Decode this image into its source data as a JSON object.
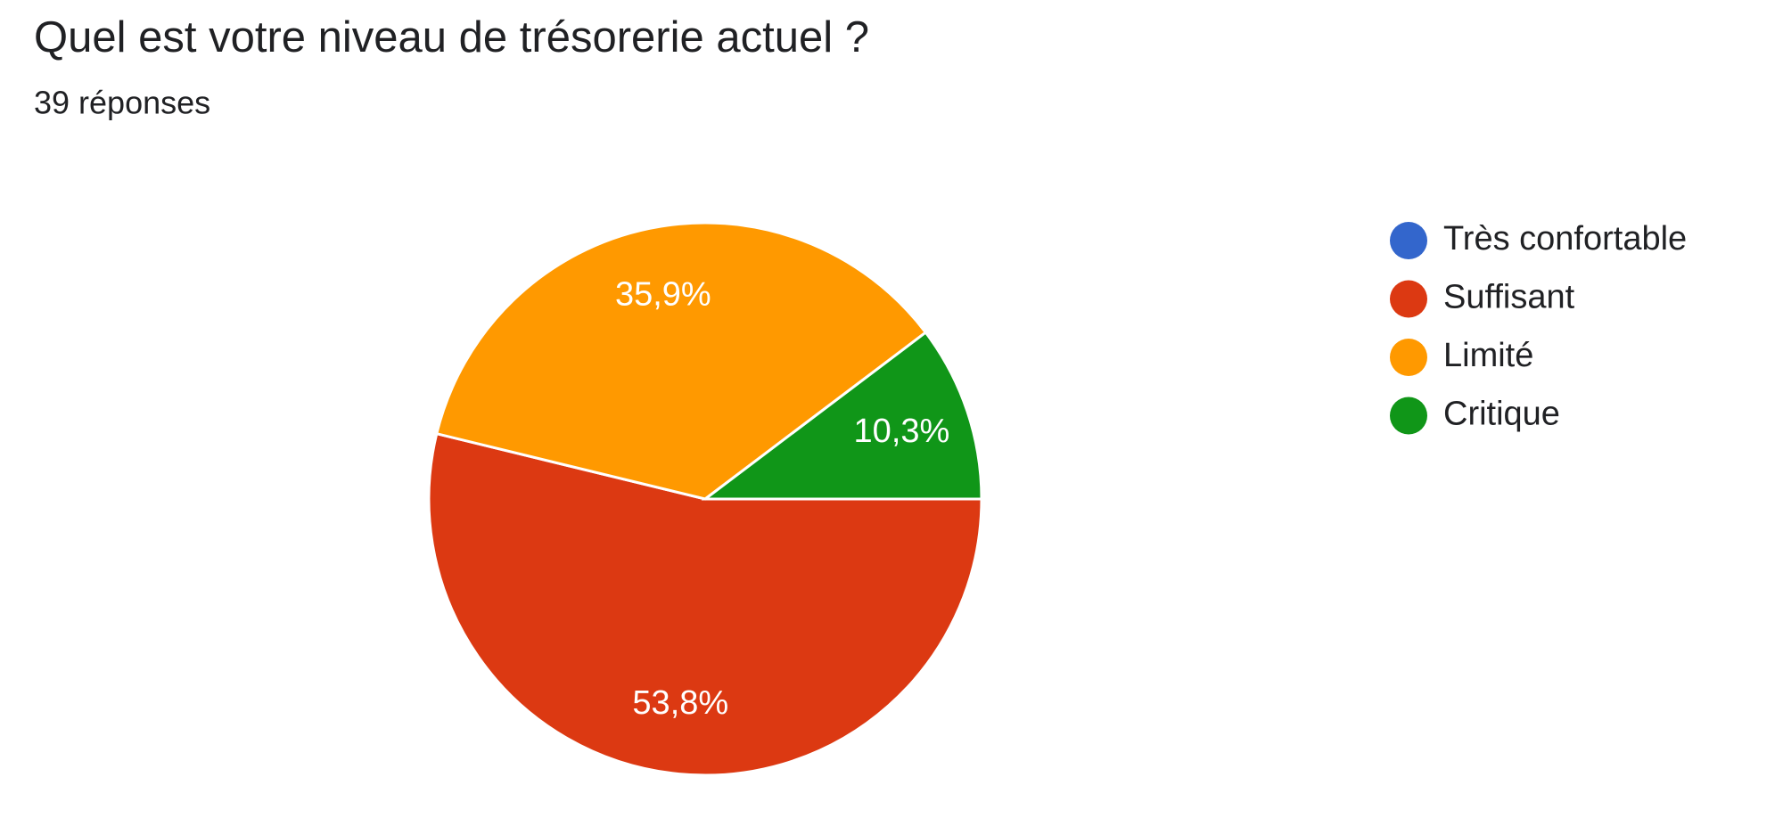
{
  "chart_data": {
    "type": "pie",
    "title": "Quel est votre niveau de trésorerie actuel ?",
    "subtitle": "39 réponses",
    "categories": [
      "Très confortable",
      "Suffisant",
      "Limité",
      "Critique"
    ],
    "values": [
      0,
      53.8,
      35.9,
      10.3
    ],
    "value_labels": [
      null,
      "53,8%",
      "35,9%",
      "10,3%"
    ],
    "colors": [
      "#3366cc",
      "#dc3912",
      "#ff9900",
      "#109618"
    ],
    "legend": "right"
  }
}
